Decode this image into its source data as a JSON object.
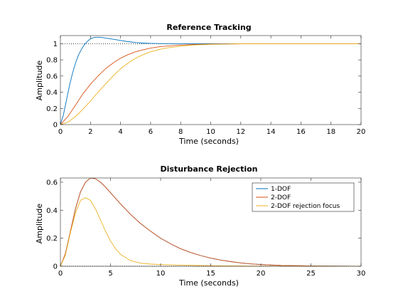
{
  "chart_data": [
    {
      "type": "line",
      "title": "Reference Tracking",
      "xlabel": "Time (seconds)",
      "ylabel": "Amplitude",
      "xlim": [
        0,
        20
      ],
      "ylim": [
        0,
        1.1
      ],
      "xticks": [
        0,
        2,
        4,
        6,
        8,
        10,
        12,
        14,
        16,
        18,
        20
      ],
      "yticks": [
        0,
        0.2,
        0.4,
        0.6,
        0.8,
        1
      ],
      "reference_line": 1,
      "grid": false,
      "series": [
        {
          "color": "#0072BD",
          "x": [
            0,
            0.2,
            0.4,
            0.6,
            0.8,
            1,
            1.2,
            1.4,
            1.6,
            1.8,
            2,
            2.2,
            2.4,
            2.6,
            2.8,
            3,
            3.5,
            4,
            4.5,
            5,
            5.5,
            6,
            7,
            8,
            10,
            12,
            14,
            16,
            18,
            20
          ],
          "y": [
            0,
            0.12,
            0.3,
            0.48,
            0.63,
            0.76,
            0.86,
            0.93,
            0.99,
            1.03,
            1.06,
            1.075,
            1.08,
            1.08,
            1.075,
            1.07,
            1.055,
            1.04,
            1.025,
            1.015,
            1.008,
            1.004,
            1.001,
            1,
            1,
            1,
            1,
            1,
            1,
            1
          ]
        },
        {
          "color": "#D95319",
          "x": [
            0,
            0.5,
            1,
            1.5,
            2,
            2.5,
            3,
            3.5,
            4,
            4.5,
            5,
            5.5,
            6,
            6.5,
            7,
            8,
            9,
            10,
            12,
            14,
            16,
            18,
            20
          ],
          "y": [
            0,
            0.1,
            0.24,
            0.38,
            0.5,
            0.6,
            0.69,
            0.76,
            0.82,
            0.865,
            0.9,
            0.925,
            0.945,
            0.96,
            0.97,
            0.983,
            0.99,
            0.995,
            0.998,
            1,
            1,
            1,
            1
          ]
        },
        {
          "color": "#EDB120",
          "x": [
            0,
            0.5,
            1,
            1.5,
            2,
            2.5,
            3,
            3.5,
            4,
            4.5,
            5,
            5.5,
            6,
            6.5,
            7,
            8,
            9,
            10,
            12,
            14,
            16,
            18,
            20
          ],
          "y": [
            0,
            0.03,
            0.1,
            0.19,
            0.29,
            0.4,
            0.5,
            0.6,
            0.69,
            0.76,
            0.82,
            0.865,
            0.9,
            0.925,
            0.945,
            0.97,
            0.985,
            0.992,
            0.998,
            1,
            1,
            1,
            1
          ]
        }
      ]
    },
    {
      "type": "line",
      "title": "Disturbance Rejection",
      "xlabel": "Time (seconds)",
      "ylabel": "Amplitude",
      "xlim": [
        0,
        30
      ],
      "ylim": [
        0,
        0.63
      ],
      "xticks": [
        0,
        5,
        10,
        15,
        20,
        25,
        30
      ],
      "yticks": [
        0,
        0.2,
        0.4,
        0.6
      ],
      "reference_line": 0,
      "grid": false,
      "legend": {
        "placement": "top-right",
        "entries": [
          "1-DOF",
          "2-DOF",
          "2-DOF rejection focus"
        ]
      },
      "series": [
        {
          "name": "1-DOF",
          "color": "#0072BD",
          "x": [
            0,
            0.5,
            1,
            1.5,
            2,
            2.5,
            3,
            3.5,
            4,
            4.5,
            5,
            6,
            7,
            8,
            9,
            10,
            11,
            12,
            13,
            14,
            15,
            16,
            17,
            18,
            19,
            20,
            22,
            25,
            30
          ],
          "y": [
            0,
            0.09,
            0.25,
            0.41,
            0.53,
            0.6,
            0.63,
            0.625,
            0.6,
            0.565,
            0.525,
            0.445,
            0.37,
            0.305,
            0.25,
            0.2,
            0.16,
            0.125,
            0.098,
            0.076,
            0.058,
            0.044,
            0.033,
            0.024,
            0.017,
            0.012,
            0.006,
            0.002,
            0
          ]
        },
        {
          "name": "2-DOF",
          "color": "#D95319",
          "x": [
            0,
            0.5,
            1,
            1.5,
            2,
            2.5,
            3,
            3.5,
            4,
            4.5,
            5,
            6,
            7,
            8,
            9,
            10,
            11,
            12,
            13,
            14,
            15,
            16,
            17,
            18,
            19,
            20,
            22,
            25,
            30
          ],
          "y": [
            0,
            0.09,
            0.25,
            0.41,
            0.53,
            0.6,
            0.63,
            0.625,
            0.6,
            0.565,
            0.525,
            0.445,
            0.37,
            0.305,
            0.25,
            0.2,
            0.16,
            0.125,
            0.098,
            0.076,
            0.058,
            0.044,
            0.033,
            0.024,
            0.017,
            0.012,
            0.006,
            0.002,
            0
          ]
        },
        {
          "name": "2-DOF rejection focus",
          "color": "#EDB120",
          "x": [
            0,
            0.5,
            1,
            1.5,
            2,
            2.5,
            3,
            3.5,
            4,
            4.5,
            5,
            5.5,
            6,
            7,
            8,
            9,
            10,
            12,
            14,
            16,
            20,
            25,
            30
          ],
          "y": [
            0,
            0.08,
            0.24,
            0.38,
            0.47,
            0.49,
            0.47,
            0.41,
            0.33,
            0.25,
            0.18,
            0.125,
            0.085,
            0.04,
            0.022,
            0.015,
            0.012,
            0.008,
            0.005,
            0.003,
            0.001,
            0,
            0
          ]
        }
      ]
    }
  ]
}
